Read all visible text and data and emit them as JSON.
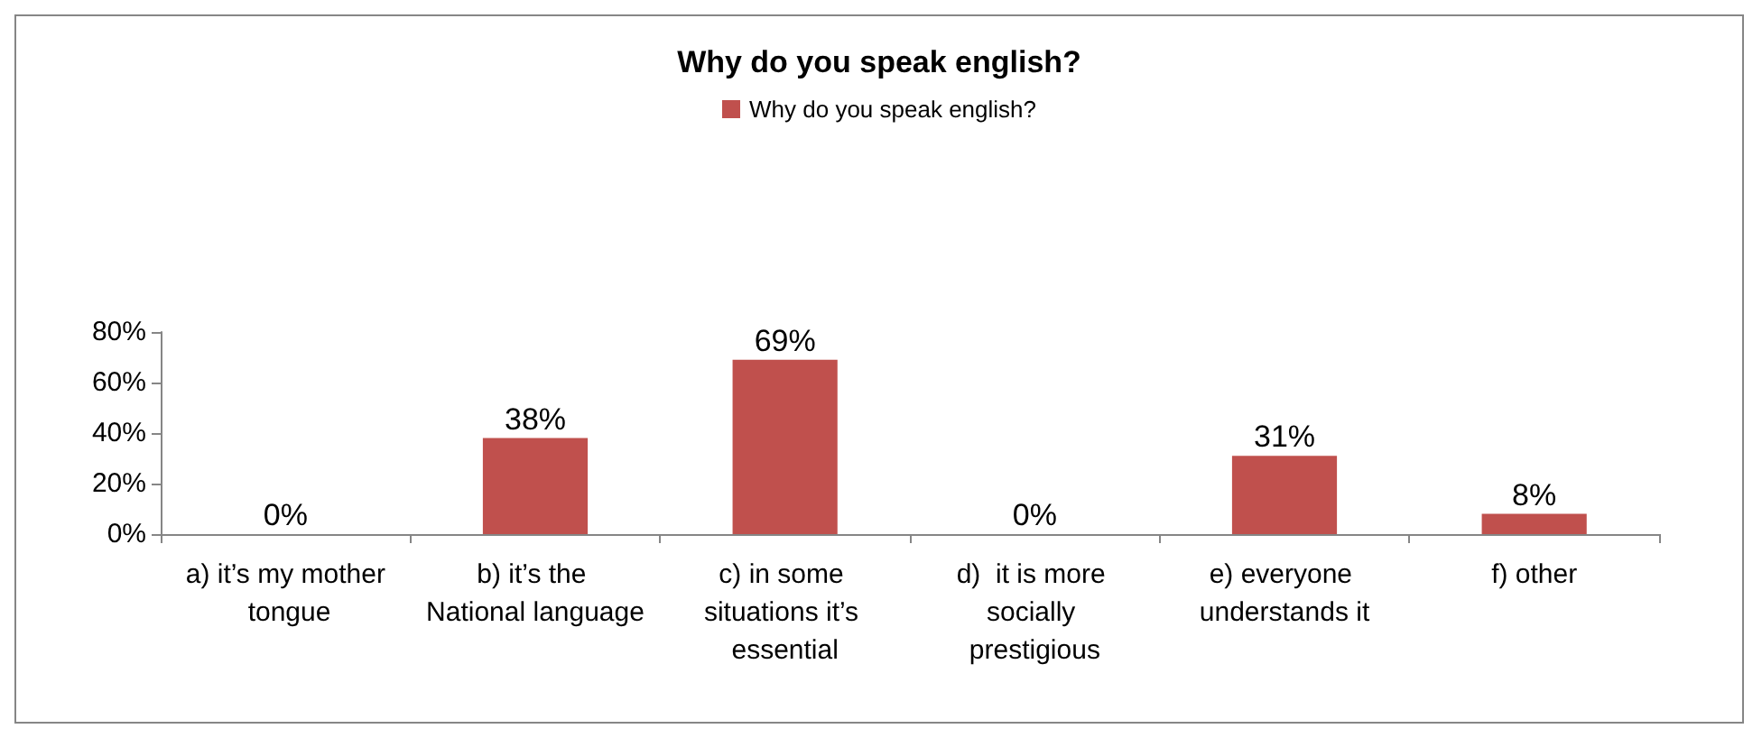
{
  "chart_data": {
    "type": "bar",
    "title": "Why do you speak english?",
    "categories": [
      "a) it’s my mother tongue",
      "b) it’s the National language",
      "c) in some situations it’s essential",
      "d)  it is more socially prestigious",
      "e) everyone understands it",
      "f) other"
    ],
    "series": [
      {
        "name": "Why do you speak english?",
        "color": "#c0504d",
        "values": [
          0,
          38,
          69,
          0,
          31,
          8
        ],
        "value_labels": [
          "0%",
          "38%",
          "69%",
          "0%",
          "31%",
          "8%"
        ]
      }
    ],
    "ylim": [
      0,
      80
    ],
    "yticks": [
      {
        "value": 0,
        "label": "0%"
      },
      {
        "value": 20,
        "label": "20%"
      },
      {
        "value": 40,
        "label": "40%"
      },
      {
        "value": 60,
        "label": "60%"
      },
      {
        "value": 80,
        "label": "80%"
      }
    ],
    "grid": false,
    "legend": "top"
  }
}
